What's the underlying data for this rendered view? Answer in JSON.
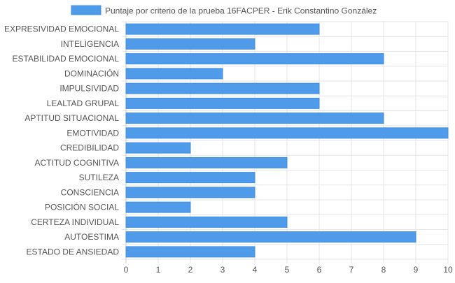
{
  "chart_data": {
    "type": "bar",
    "orientation": "horizontal",
    "categories": [
      "EXPRESIVIDAD EMOCIONAL",
      "INTELIGENCIA",
      "ESTABILIDAD EMOCIONAL",
      "DOMINACIÓN",
      "IMPULSIVIDAD",
      "LEALTAD GRUPAL",
      "APTITUD SITUACIONAL",
      "EMOTIVIDAD",
      "CREDIBILIDAD",
      "ACTITUD COGNITIVA",
      "SUTILEZA",
      "CONSCIENCIA",
      "POSICIÓN SOCIAL",
      "CERTEZA INDIVIDUAL",
      "AUTOESTIMA",
      "ESTADO DE ANSIEDAD"
    ],
    "series": [
      {
        "name": "Puntaje por criterio de la prueba 16FACPER - Erik Constantino González",
        "values": [
          6,
          4,
          8,
          3,
          6,
          6,
          8,
          10,
          2,
          5,
          4,
          4,
          2,
          5,
          9,
          4
        ],
        "color": "#4f9be9",
        "border_color": "#3d8fe6"
      }
    ],
    "xlim": [
      0,
      10
    ],
    "xticks": [
      "0",
      "1",
      "2",
      "3",
      "4",
      "5",
      "6",
      "7",
      "8",
      "9",
      "10"
    ],
    "grid": true,
    "legend_position": "top-center"
  },
  "colors": {
    "grid": "#e6e6e6",
    "axis": "#cccccc",
    "text": "#555555"
  }
}
